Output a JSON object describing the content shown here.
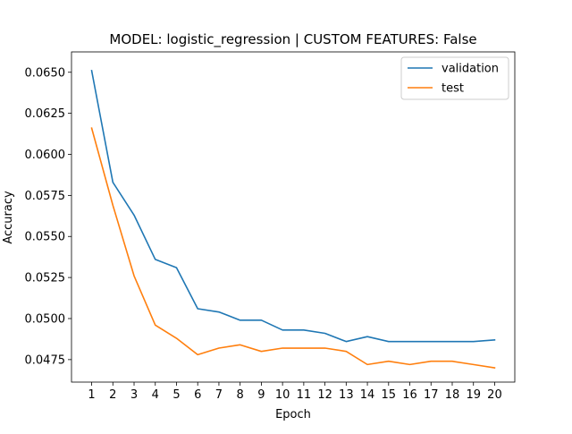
{
  "chart_data": {
    "type": "line",
    "title": "MODEL: logistic_regression | CUSTOM FEATURES: False",
    "xlabel": "Epoch",
    "ylabel": "Accuracy",
    "x": [
      1,
      2,
      3,
      4,
      5,
      6,
      7,
      8,
      9,
      10,
      11,
      12,
      13,
      14,
      15,
      16,
      17,
      18,
      19,
      20
    ],
    "xticks": [
      "1",
      "2",
      "3",
      "4",
      "5",
      "6",
      "7",
      "8",
      "9",
      "10",
      "11",
      "12",
      "13",
      "14",
      "15",
      "16",
      "17",
      "18",
      "19",
      "20"
    ],
    "yticks": [
      0.0475,
      0.05,
      0.0525,
      0.055,
      0.0575,
      0.06,
      0.0625,
      0.065
    ],
    "ytick_labels": [
      "0.0475",
      "0.0500",
      "0.0525",
      "0.0550",
      "0.0575",
      "0.0600",
      "0.0625",
      "0.0650"
    ],
    "xlim": [
      0.05,
      20.95
    ],
    "ylim": [
      0.04613,
      0.06624
    ],
    "grid": false,
    "legend_position": "top-right",
    "series": [
      {
        "name": "validation",
        "color": "#1f77b4",
        "values": [
          0.0651,
          0.0583,
          0.0563,
          0.0536,
          0.0531,
          0.0506,
          0.0504,
          0.0499,
          0.0499,
          0.0493,
          0.0493,
          0.0491,
          0.0486,
          0.0489,
          0.0486,
          0.0486,
          0.0486,
          0.0486,
          0.0486,
          0.0487
        ]
      },
      {
        "name": "test",
        "color": "#ff7f0e",
        "values": [
          0.0616,
          0.0569,
          0.0526,
          0.0496,
          0.0488,
          0.0478,
          0.0482,
          0.0484,
          0.048,
          0.0482,
          0.0482,
          0.0482,
          0.048,
          0.0472,
          0.0474,
          0.0472,
          0.0474,
          0.0474,
          0.0472,
          0.047
        ]
      }
    ]
  }
}
